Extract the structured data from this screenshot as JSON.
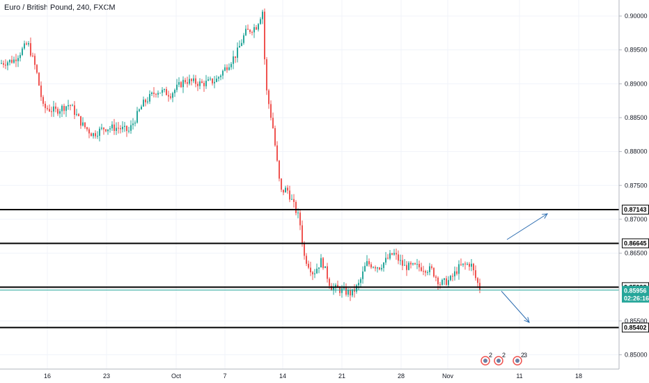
{
  "chart_data": {
    "type": "candlestick",
    "title": "Euro / British Pound, 240, FXCM",
    "x_tick_labels": [
      "16",
      "23",
      "Oct",
      "7",
      "14",
      "21",
      "28",
      "Nov",
      "11",
      "18"
    ],
    "y_tick_labels": [
      "0.90000",
      "0.89500",
      "0.89000",
      "0.88500",
      "0.88000",
      "0.87500",
      "0.87000",
      "0.86500",
      "0.85500",
      "0.85000"
    ],
    "ylim": [
      0.8478,
      0.9022
    ],
    "grid": true,
    "colors": {
      "up": "#26a69a",
      "down": "#ef5350",
      "line": "#000000",
      "price": "#26a69a",
      "arrow": "#2b6cb0"
    },
    "close_approx": [
      {
        "label": "16",
        "value": 0.8865
      },
      {
        "label": "23",
        "value": 0.883
      },
      {
        "label": "Oct",
        "value": 0.888
      },
      {
        "label": "7",
        "value": 0.8945
      },
      {
        "label": "10",
        "value": 0.901
      },
      {
        "label": "11",
        "value": 0.888
      },
      {
        "label": "14",
        "value": 0.872
      },
      {
        "label": "21",
        "value": 0.859
      },
      {
        "label": "28",
        "value": 0.863
      },
      {
        "label": "Nov",
        "value": 0.862
      },
      {
        "label": "last",
        "value": 0.85956
      }
    ],
    "horizontal_levels": [
      {
        "label": "0.87143",
        "value": 0.87143
      },
      {
        "label": "0.86645",
        "value": 0.86645
      },
      {
        "label": "0.85998",
        "value": 0.85998
      },
      {
        "label": "0.85402",
        "value": 0.85402
      }
    ],
    "current_price": {
      "label": "0.85956",
      "value": 0.85956,
      "countdown": "02:26:16"
    },
    "event_markers": [
      "2",
      "2",
      "2",
      "3"
    ]
  }
}
